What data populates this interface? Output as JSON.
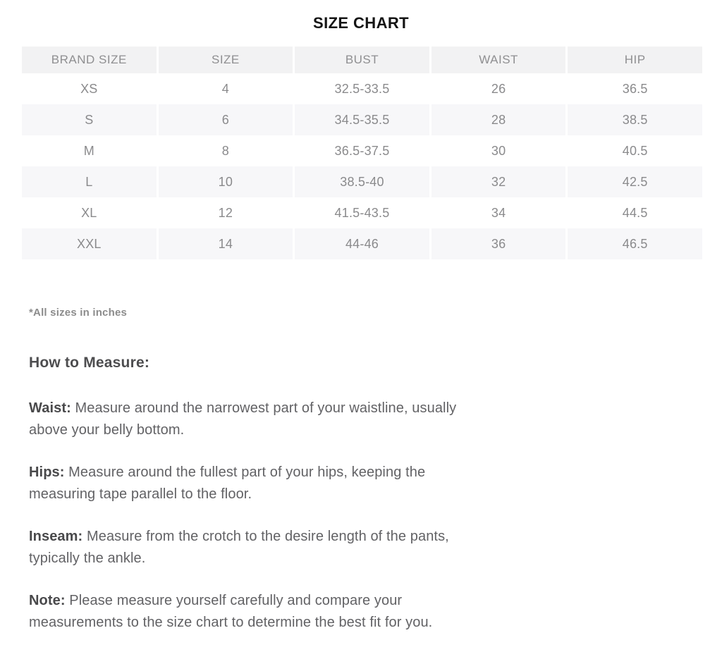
{
  "title": "SIZE CHART",
  "size_chart": {
    "columns": [
      "BRAND SIZE",
      "SIZE",
      "BUST",
      "WAIST",
      "HIP"
    ],
    "rows": [
      [
        "XS",
        "4",
        "32.5-33.5",
        "26",
        "36.5"
      ],
      [
        "S",
        "6",
        "34.5-35.5",
        "28",
        "38.5"
      ],
      [
        "M",
        "8",
        "36.5-37.5",
        "30",
        "40.5"
      ],
      [
        "L",
        "10",
        "38.5-40",
        "32",
        "42.5"
      ],
      [
        "XL",
        "12",
        "41.5-43.5",
        "34",
        "44.5"
      ],
      [
        "XXL",
        "14",
        "44-46",
        "36",
        "46.5"
      ]
    ]
  },
  "footnote": "*All sizes in inches",
  "how_to_measure": {
    "heading": "How to Measure:",
    "items": [
      {
        "label": "Waist:",
        "text": "Measure around the narrowest part of your waistline, usually\nabove your belly bottom."
      },
      {
        "label": "Hips:",
        "text": "Measure around the fullest part of your hips, keeping the\nmeasuring tape parallel to the floor."
      },
      {
        "label": "Inseam:",
        "text": "Measure from the crotch to the desire length of the pants,\ntypically the ankle."
      },
      {
        "label": "Note:",
        "text": "Please measure yourself carefully and compare your\nmeasurements to the size chart to determine the best fit for you."
      }
    ]
  },
  "colors": {
    "header_bg": "#f2f2f3",
    "stripe_bg": "#f7f7f9",
    "table_text": "#8a8a8c",
    "heading_text": "#4d4d4f",
    "body_text": "#626265",
    "title_text": "#141414"
  }
}
